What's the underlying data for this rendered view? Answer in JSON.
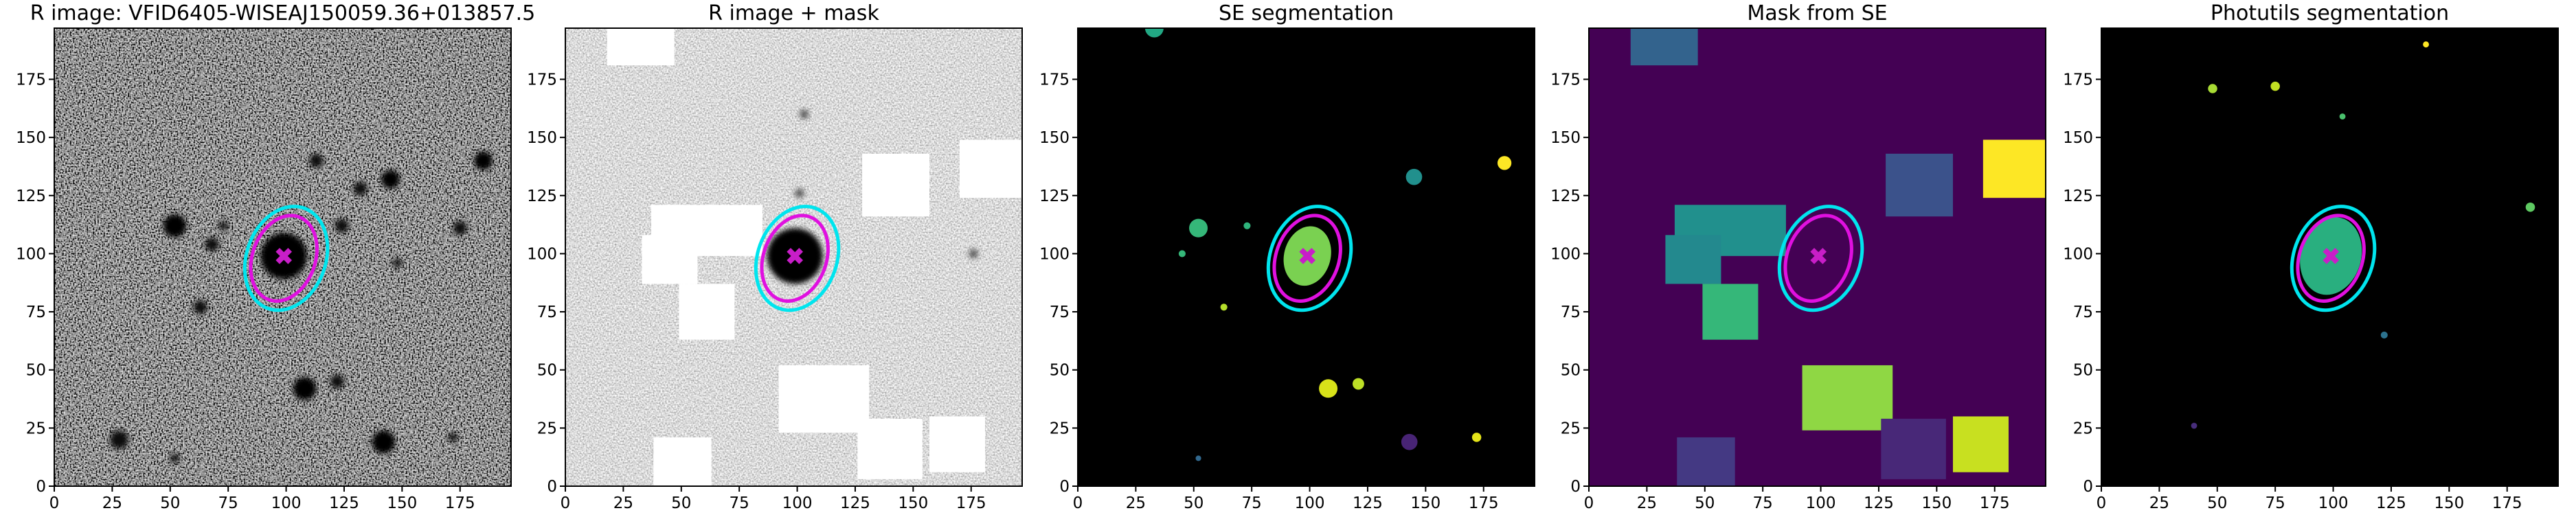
{
  "chart_data": [
    {
      "type": "image",
      "title": "R image: VFID6405-WISEAJ150059.36+013857.5",
      "background": "noise-dark",
      "xlim": [
        0,
        197
      ],
      "ylim": [
        0,
        197
      ],
      "xticks": [
        0,
        25,
        50,
        75,
        100,
        125,
        150,
        175
      ],
      "yticks": [
        0,
        25,
        50,
        75,
        100,
        125,
        150,
        175
      ],
      "blobs": [
        {
          "x": 99,
          "y": 99,
          "r": 10,
          "color": "#000000"
        },
        {
          "x": 52,
          "y": 112,
          "r": 5,
          "color": "#050505"
        },
        {
          "x": 68,
          "y": 104,
          "r": 3,
          "color": "#111111"
        },
        {
          "x": 73,
          "y": 112,
          "r": 2,
          "color": "#111111"
        },
        {
          "x": 145,
          "y": 132,
          "r": 4,
          "color": "#050505"
        },
        {
          "x": 185,
          "y": 140,
          "r": 4,
          "color": "#050505"
        },
        {
          "x": 175,
          "y": 111,
          "r": 3,
          "color": "#111111"
        },
        {
          "x": 124,
          "y": 112,
          "r": 3,
          "color": "#111111"
        },
        {
          "x": 132,
          "y": 128,
          "r": 3,
          "color": "#111111"
        },
        {
          "x": 108,
          "y": 42,
          "r": 5,
          "color": "#050505"
        },
        {
          "x": 122,
          "y": 45,
          "r": 3,
          "color": "#111111"
        },
        {
          "x": 142,
          "y": 19,
          "r": 5,
          "color": "#050505"
        },
        {
          "x": 172,
          "y": 21,
          "r": 2,
          "color": "#111111"
        },
        {
          "x": 63,
          "y": 77,
          "r": 3,
          "color": "#111111"
        },
        {
          "x": 28,
          "y": 20,
          "r": 4,
          "color": "#111111"
        },
        {
          "x": 113,
          "y": 140,
          "r": 3,
          "color": "#111111"
        },
        {
          "x": 148,
          "y": 96,
          "r": 2,
          "color": "#111111"
        },
        {
          "x": 52,
          "y": 12,
          "r": 2,
          "color": "#111111"
        }
      ],
      "ellipses": [
        {
          "cx": 100,
          "cy": 98,
          "a": 23,
          "b": 17,
          "angle": 70,
          "color": "#00e5ee",
          "filled": false
        },
        {
          "cx": 99,
          "cy": 98,
          "a": 19,
          "b": 13.5,
          "angle": 70,
          "color": "#e010e0",
          "filled": false
        }
      ],
      "marker": {
        "x": 99,
        "y": 99,
        "color": "#c81ec8"
      }
    },
    {
      "type": "image",
      "title": "R image + mask",
      "background": "noise-light",
      "xlim": [
        0,
        197
      ],
      "ylim": [
        0,
        197
      ],
      "xticks": [
        0,
        25,
        50,
        75,
        100,
        125,
        150,
        175
      ],
      "yticks": [
        0,
        25,
        50,
        75,
        100,
        125,
        150,
        175
      ],
      "blobs": [
        {
          "x": 99,
          "y": 99,
          "r": 12,
          "color": "#000000"
        },
        {
          "x": 103,
          "y": 160,
          "r": 2,
          "color": "#555555"
        },
        {
          "x": 101,
          "y": 126,
          "r": 2,
          "color": "#555555"
        },
        {
          "x": 42,
          "y": 15,
          "r": 3,
          "color": "#555555"
        },
        {
          "x": 176,
          "y": 100,
          "r": 2,
          "color": "#555555"
        }
      ],
      "rects": [
        {
          "x": [
            18,
            47
          ],
          "y": [
            181,
            197
          ],
          "color": "#ffffff"
        },
        {
          "x": [
            37,
            85
          ],
          "y": [
            99,
            121
          ],
          "color": "#ffffff"
        },
        {
          "x": [
            33,
            57
          ],
          "y": [
            87,
            108
          ],
          "color": "#ffffff"
        },
        {
          "x": [
            49,
            73
          ],
          "y": [
            63,
            87
          ],
          "color": "#ffffff"
        },
        {
          "x": [
            128,
            157
          ],
          "y": [
            116,
            143
          ],
          "color": "#ffffff"
        },
        {
          "x": [
            170,
            197
          ],
          "y": [
            124,
            149
          ],
          "color": "#ffffff"
        },
        {
          "x": [
            92,
            131
          ],
          "y": [
            23,
            52
          ],
          "color": "#ffffff"
        },
        {
          "x": [
            126,
            154
          ],
          "y": [
            3,
            29
          ],
          "color": "#ffffff"
        },
        {
          "x": [
            157,
            181
          ],
          "y": [
            6,
            30
          ],
          "color": "#ffffff"
        },
        {
          "x": [
            38,
            63
          ],
          "y": [
            0,
            21
          ],
          "color": "#ffffff"
        }
      ],
      "ellipses": [
        {
          "cx": 100,
          "cy": 98,
          "a": 23,
          "b": 17,
          "angle": 70,
          "color": "#00e5ee",
          "filled": false
        },
        {
          "cx": 99,
          "cy": 98,
          "a": 19,
          "b": 13.5,
          "angle": 70,
          "color": "#e010e0",
          "filled": false
        }
      ],
      "marker": {
        "x": 99,
        "y": 99,
        "color": "#c81ec8"
      }
    },
    {
      "type": "image",
      "title": "SE segmentation",
      "background": "#000000",
      "xlim": [
        0,
        197
      ],
      "ylim": [
        0,
        197
      ],
      "xticks": [
        0,
        25,
        50,
        75,
        100,
        125,
        150,
        175
      ],
      "yticks": [
        0,
        25,
        50,
        75,
        100,
        125,
        150,
        175
      ],
      "blobs": [
        {
          "x": 52,
          "y": 111,
          "r": 4,
          "color": "#35b779"
        },
        {
          "x": 45,
          "y": 100,
          "r": 1.5,
          "color": "#35b779"
        },
        {
          "x": 73,
          "y": 112,
          "r": 1.5,
          "color": "#2fb47c"
        },
        {
          "x": 145,
          "y": 133,
          "r": 3.5,
          "color": "#21908d"
        },
        {
          "x": 184,
          "y": 139,
          "r": 3,
          "color": "#fde725"
        },
        {
          "x": 63,
          "y": 77,
          "r": 1.5,
          "color": "#b5de2b"
        },
        {
          "x": 108,
          "y": 42,
          "r": 4,
          "color": "#d8e219"
        },
        {
          "x": 121,
          "y": 44,
          "r": 2.5,
          "color": "#bddf26"
        },
        {
          "x": 143,
          "y": 19,
          "r": 3.5,
          "color": "#482475"
        },
        {
          "x": 172,
          "y": 21,
          "r": 2,
          "color": "#e5e419"
        },
        {
          "x": 52,
          "y": 12,
          "r": 1.2,
          "color": "#31688e"
        },
        {
          "x": 33,
          "y": 197,
          "r": 4,
          "color": "#22a884"
        }
      ],
      "ellipses": [
        {
          "cx": 99,
          "cy": 99,
          "a": 13,
          "b": 10,
          "angle": 75,
          "color": "#7ad151",
          "filled": true
        },
        {
          "cx": 100,
          "cy": 98,
          "a": 23,
          "b": 17,
          "angle": 70,
          "color": "#00e5ee",
          "filled": false
        },
        {
          "cx": 99,
          "cy": 98,
          "a": 19,
          "b": 13.5,
          "angle": 70,
          "color": "#e010e0",
          "filled": false
        }
      ],
      "marker": {
        "x": 99,
        "y": 99,
        "color": "#c81ec8"
      }
    },
    {
      "type": "image",
      "title": "Mask from SE",
      "background": "#440154",
      "xlim": [
        0,
        197
      ],
      "ylim": [
        0,
        197
      ],
      "xticks": [
        0,
        25,
        50,
        75,
        100,
        125,
        150,
        175
      ],
      "yticks": [
        0,
        25,
        50,
        75,
        100,
        125,
        150,
        175
      ],
      "rects": [
        {
          "x": [
            18,
            47
          ],
          "y": [
            181,
            197
          ],
          "color": "#33638d"
        },
        {
          "x": [
            37,
            85
          ],
          "y": [
            99,
            121
          ],
          "color": "#21908d"
        },
        {
          "x": [
            33,
            57
          ],
          "y": [
            87,
            108
          ],
          "color": "#23898e"
        },
        {
          "x": [
            49,
            73
          ],
          "y": [
            63,
            87
          ],
          "color": "#35b779"
        },
        {
          "x": [
            128,
            157
          ],
          "y": [
            116,
            143
          ],
          "color": "#3b528b"
        },
        {
          "x": [
            170,
            197
          ],
          "y": [
            124,
            149
          ],
          "color": "#fde725"
        },
        {
          "x": [
            92,
            131
          ],
          "y": [
            24,
            52
          ],
          "color": "#8fd744"
        },
        {
          "x": [
            126,
            154
          ],
          "y": [
            3,
            29
          ],
          "color": "#482878"
        },
        {
          "x": [
            157,
            181
          ],
          "y": [
            6,
            30
          ],
          "color": "#c8e020"
        },
        {
          "x": [
            38,
            63
          ],
          "y": [
            0,
            21
          ],
          "color": "#443983"
        }
      ],
      "ellipses": [
        {
          "cx": 100,
          "cy": 98,
          "a": 23,
          "b": 17,
          "angle": 70,
          "color": "#00e5ee",
          "filled": false
        },
        {
          "cx": 99,
          "cy": 98,
          "a": 19,
          "b": 13.5,
          "angle": 70,
          "color": "#e010e0",
          "filled": false
        }
      ],
      "marker": {
        "x": 99,
        "y": 99,
        "color": "#c81ec8"
      }
    },
    {
      "type": "image",
      "title": "Photutils segmentation",
      "background": "#000000",
      "xlim": [
        0,
        197
      ],
      "ylim": [
        0,
        197
      ],
      "xticks": [
        0,
        25,
        50,
        75,
        100,
        125,
        150,
        175
      ],
      "yticks": [
        0,
        25,
        50,
        75,
        100,
        125,
        150,
        175
      ],
      "blobs": [
        {
          "x": 48,
          "y": 171,
          "r": 2,
          "color": "#a8db34"
        },
        {
          "x": 75,
          "y": 172,
          "r": 2,
          "color": "#c2df23"
        },
        {
          "x": 140,
          "y": 190,
          "r": 1.3,
          "color": "#fde725"
        },
        {
          "x": 104,
          "y": 159,
          "r": 1.3,
          "color": "#4ac16d"
        },
        {
          "x": 185,
          "y": 120,
          "r": 2,
          "color": "#5ec962"
        },
        {
          "x": 122,
          "y": 65,
          "r": 1.5,
          "color": "#2c728e"
        },
        {
          "x": 40,
          "y": 26,
          "r": 1.3,
          "color": "#472d7b"
        }
      ],
      "ellipses": [
        {
          "cx": 99,
          "cy": 99,
          "a": 17,
          "b": 13,
          "angle": 75,
          "color": "#29af7f",
          "filled": true
        },
        {
          "cx": 100,
          "cy": 98,
          "a": 23,
          "b": 17,
          "angle": 70,
          "color": "#00e5ee",
          "filled": false
        },
        {
          "cx": 99,
          "cy": 98,
          "a": 19,
          "b": 13.5,
          "angle": 70,
          "color": "#e010e0",
          "filled": false
        }
      ],
      "marker": {
        "x": 99,
        "y": 99,
        "color": "#c81ec8"
      }
    }
  ]
}
